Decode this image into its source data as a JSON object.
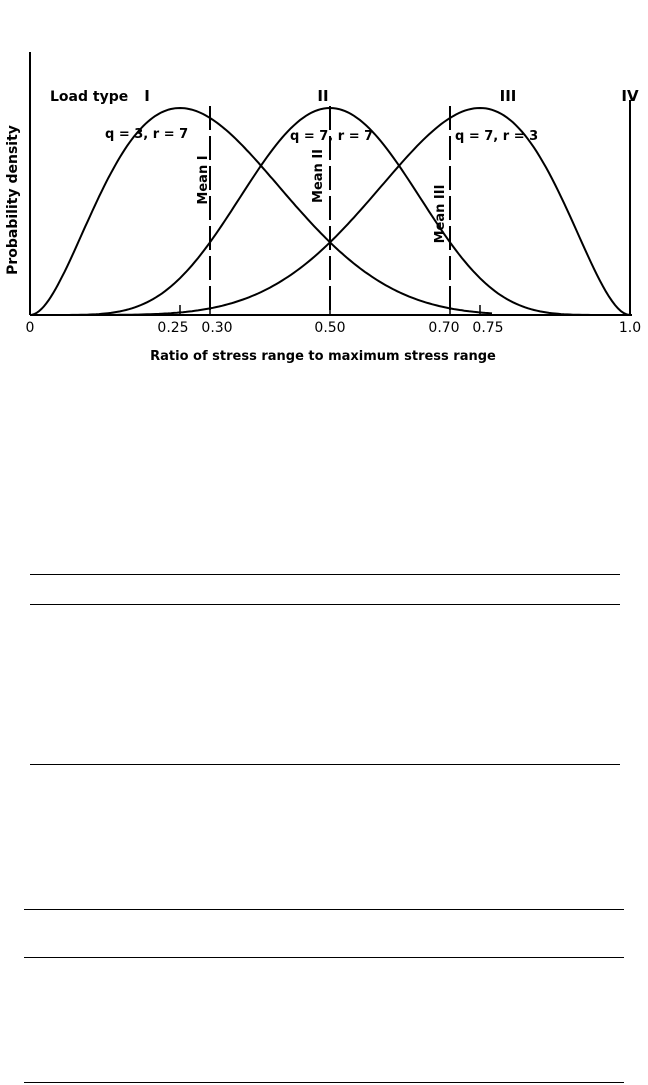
{
  "chart_data": {
    "type": "line",
    "xlabel": "Ratio of stress range to maximum stress range",
    "ylabel": "Probability density",
    "xlim": [
      0,
      1.0
    ],
    "ylim": [
      0,
      1.0
    ],
    "x_ticks": [
      "0",
      "0.25",
      "0.30",
      "0.50",
      "0.70",
      "0.75",
      "1.0"
    ],
    "x_tick_values": [
      0,
      0.25,
      0.3,
      0.5,
      0.7,
      0.75,
      1.0
    ],
    "legend_title": "Load type",
    "series": [
      {
        "name": "I",
        "q": 3,
        "r": 7,
        "param_label": "q = 3, r = 7",
        "mean": 0.3,
        "mean_label": "Mean I",
        "x_end": 0.77
      },
      {
        "name": "II",
        "q": 7,
        "r": 7,
        "param_label": "q = 7, r = 7",
        "mean": 0.5,
        "mean_label": "Mean II",
        "x_end": 1.0
      },
      {
        "name": "III",
        "q": 7,
        "r": 3,
        "param_label": "q = 7, r = 3",
        "mean": 0.7,
        "mean_label": "Mean III",
        "x_end": 1.0
      },
      {
        "name": "IV",
        "x": 1.0
      }
    ],
    "grid": false
  }
}
